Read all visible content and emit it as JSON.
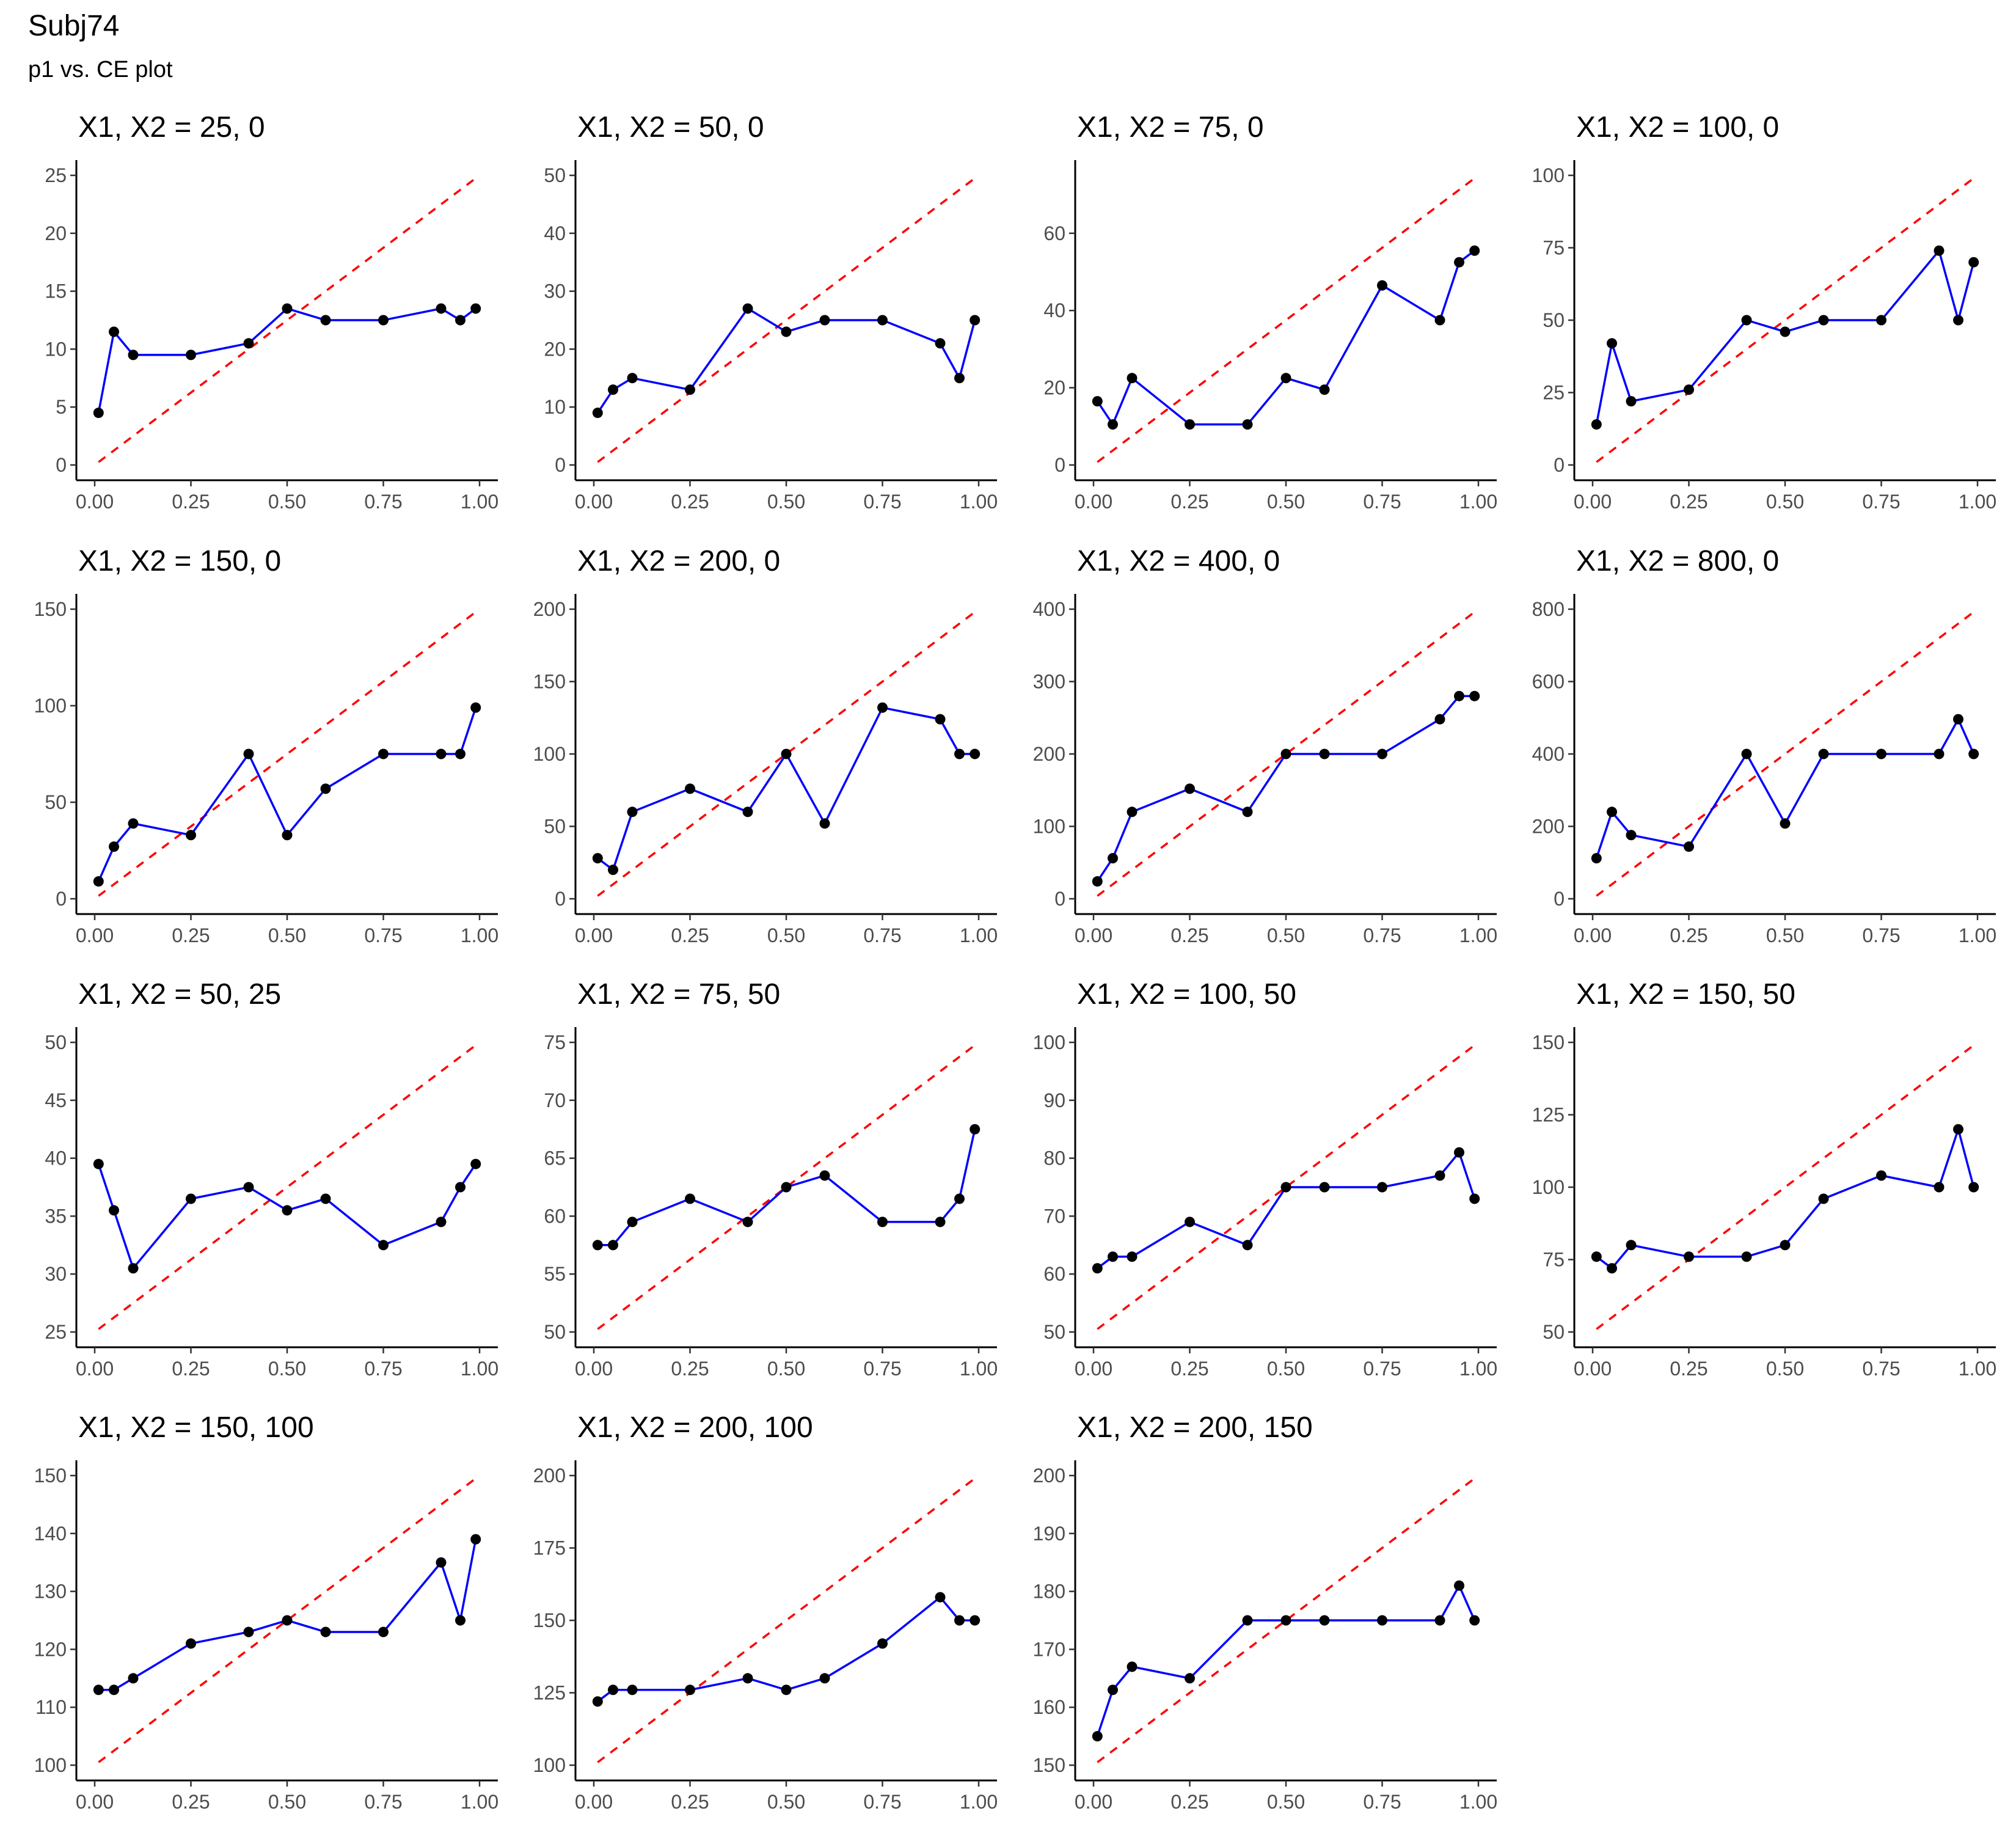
{
  "title": "Subj74",
  "subtitle": "p1 vs. CE plot",
  "colors": {
    "series_line": "#0000ff",
    "points": "#000000",
    "reference_line": "#ff0000"
  },
  "chart_data": [
    {
      "type": "line",
      "title": "X1, X2 = 25, 0",
      "ylim": [
        0,
        25
      ],
      "yticks": [
        0,
        5,
        10,
        15,
        20,
        25
      ],
      "xlim": [
        0,
        1
      ],
      "xticks": [
        "0.00",
        "0.25",
        "0.50",
        "0.75",
        "1.00"
      ],
      "reference_line": [
        [
          0.01,
          0.25
        ],
        [
          0.99,
          24.75
        ]
      ],
      "x": [
        0.01,
        0.05,
        0.1,
        0.25,
        0.4,
        0.5,
        0.6,
        0.75,
        0.9,
        0.95,
        0.99
      ],
      "y": [
        4.5,
        11.5,
        9.5,
        9.5,
        10.5,
        13.5,
        12.5,
        12.5,
        13.5,
        12.5,
        13.5
      ]
    },
    {
      "type": "line",
      "title": "X1, X2 = 50, 0",
      "ylim": [
        0,
        50
      ],
      "yticks": [
        0,
        10,
        20,
        30,
        40,
        50
      ],
      "xlim": [
        0,
        1
      ],
      "xticks": [
        "0.00",
        "0.25",
        "0.50",
        "0.75",
        "1.00"
      ],
      "reference_line": [
        [
          0.01,
          0.5
        ],
        [
          0.99,
          49.5
        ]
      ],
      "x": [
        0.01,
        0.05,
        0.1,
        0.25,
        0.4,
        0.5,
        0.6,
        0.75,
        0.9,
        0.95,
        0.99
      ],
      "y": [
        9,
        13,
        15,
        13,
        27,
        23,
        25,
        25,
        21,
        15,
        25
      ]
    },
    {
      "type": "line",
      "title": "X1, X2 = 75, 0",
      "ylim": [
        0,
        75
      ],
      "yticks": [
        0,
        20,
        40,
        60
      ],
      "xlim": [
        0,
        1
      ],
      "xticks": [
        "0.00",
        "0.25",
        "0.50",
        "0.75",
        "1.00"
      ],
      "reference_line": [
        [
          0.01,
          0.75
        ],
        [
          0.99,
          74.25
        ]
      ],
      "x": [
        0.01,
        0.05,
        0.1,
        0.25,
        0.4,
        0.5,
        0.6,
        0.75,
        0.9,
        0.95,
        0.99
      ],
      "y": [
        16.5,
        10.5,
        22.5,
        10.5,
        10.5,
        22.5,
        19.5,
        46.5,
        37.5,
        52.5,
        55.5
      ]
    },
    {
      "type": "line",
      "title": "X1, X2 = 100, 0",
      "ylim": [
        0,
        100
      ],
      "yticks": [
        0,
        25,
        50,
        75,
        100
      ],
      "xlim": [
        0,
        1
      ],
      "xticks": [
        "0.00",
        "0.25",
        "0.50",
        "0.75",
        "1.00"
      ],
      "reference_line": [
        [
          0.01,
          1
        ],
        [
          0.99,
          99
        ]
      ],
      "x": [
        0.01,
        0.05,
        0.1,
        0.25,
        0.4,
        0.5,
        0.6,
        0.75,
        0.9,
        0.95,
        0.99
      ],
      "y": [
        14,
        42,
        22,
        26,
        50,
        46,
        50,
        50,
        74,
        50,
        70
      ]
    },
    {
      "type": "line",
      "title": "X1, X2 = 150, 0",
      "ylim": [
        0,
        150
      ],
      "yticks": [
        0,
        50,
        100,
        150
      ],
      "xlim": [
        0,
        1
      ],
      "xticks": [
        "0.00",
        "0.25",
        "0.50",
        "0.75",
        "1.00"
      ],
      "reference_line": [
        [
          0.01,
          1.5
        ],
        [
          0.99,
          148.5
        ]
      ],
      "x": [
        0.01,
        0.05,
        0.1,
        0.25,
        0.4,
        0.5,
        0.6,
        0.75,
        0.9,
        0.95,
        0.99
      ],
      "y": [
        9,
        27,
        39,
        33,
        75,
        33,
        57,
        75,
        75,
        75,
        99
      ]
    },
    {
      "type": "line",
      "title": "X1, X2 = 200, 0",
      "ylim": [
        0,
        200
      ],
      "yticks": [
        0,
        50,
        100,
        150,
        200
      ],
      "xlim": [
        0,
        1
      ],
      "xticks": [
        "0.00",
        "0.25",
        "0.50",
        "0.75",
        "1.00"
      ],
      "reference_line": [
        [
          0.01,
          2
        ],
        [
          0.99,
          198
        ]
      ],
      "x": [
        0.01,
        0.05,
        0.1,
        0.25,
        0.4,
        0.5,
        0.6,
        0.75,
        0.9,
        0.95,
        0.99
      ],
      "y": [
        28,
        20,
        60,
        76,
        60,
        100,
        52,
        132,
        124,
        100,
        100
      ]
    },
    {
      "type": "line",
      "title": "X1, X2 = 400, 0",
      "ylim": [
        0,
        400
      ],
      "yticks": [
        0,
        100,
        200,
        300,
        400
      ],
      "xlim": [
        0,
        1
      ],
      "xticks": [
        "0.00",
        "0.25",
        "0.50",
        "0.75",
        "1.00"
      ],
      "reference_line": [
        [
          0.01,
          4
        ],
        [
          0.99,
          396
        ]
      ],
      "x": [
        0.01,
        0.05,
        0.1,
        0.25,
        0.4,
        0.5,
        0.6,
        0.75,
        0.9,
        0.95,
        0.99
      ],
      "y": [
        24,
        56,
        120,
        152,
        120,
        200,
        200,
        200,
        248,
        280,
        280
      ]
    },
    {
      "type": "line",
      "title": "X1, X2 = 800, 0",
      "ylim": [
        0,
        800
      ],
      "yticks": [
        0,
        200,
        400,
        600,
        800
      ],
      "xlim": [
        0,
        1
      ],
      "xticks": [
        "0.00",
        "0.25",
        "0.50",
        "0.75",
        "1.00"
      ],
      "reference_line": [
        [
          0.01,
          8
        ],
        [
          0.99,
          792
        ]
      ],
      "x": [
        0.01,
        0.05,
        0.1,
        0.25,
        0.4,
        0.5,
        0.6,
        0.75,
        0.9,
        0.95,
        0.99
      ],
      "y": [
        112,
        240,
        176,
        144,
        400,
        208,
        400,
        400,
        400,
        496,
        400
      ]
    },
    {
      "type": "line",
      "title": "X1, X2 = 50, 25",
      "ylim": [
        25,
        50
      ],
      "yticks": [
        25,
        30,
        35,
        40,
        45,
        50
      ],
      "xlim": [
        0,
        1
      ],
      "xticks": [
        "0.00",
        "0.25",
        "0.50",
        "0.75",
        "1.00"
      ],
      "reference_line": [
        [
          0.01,
          25.25
        ],
        [
          0.99,
          49.75
        ]
      ],
      "x": [
        0.01,
        0.05,
        0.1,
        0.25,
        0.4,
        0.5,
        0.6,
        0.75,
        0.9,
        0.95,
        0.99
      ],
      "y": [
        39.5,
        35.5,
        30.5,
        36.5,
        37.5,
        35.5,
        36.5,
        32.5,
        34.5,
        37.5,
        39.5
      ]
    },
    {
      "type": "line",
      "title": "X1, X2 = 75, 50",
      "ylim": [
        50,
        75
      ],
      "yticks": [
        50,
        55,
        60,
        65,
        70,
        75
      ],
      "xlim": [
        0,
        1
      ],
      "xticks": [
        "0.00",
        "0.25",
        "0.50",
        "0.75",
        "1.00"
      ],
      "reference_line": [
        [
          0.01,
          50.25
        ],
        [
          0.99,
          74.75
        ]
      ],
      "x": [
        0.01,
        0.05,
        0.1,
        0.25,
        0.4,
        0.5,
        0.6,
        0.75,
        0.9,
        0.95,
        0.99
      ],
      "y": [
        57.5,
        57.5,
        59.5,
        61.5,
        59.5,
        62.5,
        63.5,
        59.5,
        59.5,
        61.5,
        67.5
      ]
    },
    {
      "type": "line",
      "title": "X1, X2 = 100, 50",
      "ylim": [
        50,
        100
      ],
      "yticks": [
        50,
        60,
        70,
        80,
        90,
        100
      ],
      "xlim": [
        0,
        1
      ],
      "xticks": [
        "0.00",
        "0.25",
        "0.50",
        "0.75",
        "1.00"
      ],
      "reference_line": [
        [
          0.01,
          50.5
        ],
        [
          0.99,
          99.5
        ]
      ],
      "x": [
        0.01,
        0.05,
        0.1,
        0.25,
        0.4,
        0.5,
        0.6,
        0.75,
        0.9,
        0.95,
        0.99
      ],
      "y": [
        61,
        63,
        63,
        69,
        65,
        75,
        75,
        75,
        77,
        81,
        73
      ]
    },
    {
      "type": "line",
      "title": "X1, X2 = 150, 50",
      "ylim": [
        50,
        150
      ],
      "yticks": [
        50,
        75,
        100,
        125,
        150
      ],
      "xlim": [
        0,
        1
      ],
      "xticks": [
        "0.00",
        "0.25",
        "0.50",
        "0.75",
        "1.00"
      ],
      "reference_line": [
        [
          0.01,
          51
        ],
        [
          0.99,
          149
        ]
      ],
      "x": [
        0.01,
        0.05,
        0.1,
        0.25,
        0.4,
        0.5,
        0.6,
        0.75,
        0.9,
        0.95,
        0.99
      ],
      "y": [
        76,
        72,
        80,
        76,
        76,
        80,
        96,
        104,
        100,
        120,
        100
      ]
    },
    {
      "type": "line",
      "title": "X1, X2 = 150, 100",
      "ylim": [
        100,
        150
      ],
      "yticks": [
        100,
        110,
        120,
        130,
        140,
        150
      ],
      "xlim": [
        0,
        1
      ],
      "xticks": [
        "0.00",
        "0.25",
        "0.50",
        "0.75",
        "1.00"
      ],
      "reference_line": [
        [
          0.01,
          100.5
        ],
        [
          0.99,
          149.5
        ]
      ],
      "x": [
        0.01,
        0.05,
        0.1,
        0.25,
        0.4,
        0.5,
        0.6,
        0.75,
        0.9,
        0.95,
        0.99
      ],
      "y": [
        113,
        113,
        115,
        121,
        123,
        125,
        123,
        123,
        135,
        125,
        139
      ]
    },
    {
      "type": "line",
      "title": "X1, X2 = 200, 100",
      "ylim": [
        100,
        200
      ],
      "yticks": [
        100,
        125,
        150,
        175,
        200
      ],
      "xlim": [
        0,
        1
      ],
      "xticks": [
        "0.00",
        "0.25",
        "0.50",
        "0.75",
        "1.00"
      ],
      "reference_line": [
        [
          0.01,
          101
        ],
        [
          0.99,
          199
        ]
      ],
      "x": [
        0.01,
        0.05,
        0.1,
        0.25,
        0.4,
        0.5,
        0.6,
        0.75,
        0.9,
        0.95,
        0.99
      ],
      "y": [
        122,
        126,
        126,
        126,
        130,
        126,
        130,
        142,
        158,
        150,
        150
      ]
    },
    {
      "type": "line",
      "title": "X1, X2 = 200, 150",
      "ylim": [
        150,
        200
      ],
      "yticks": [
        150,
        160,
        170,
        180,
        190,
        200
      ],
      "xlim": [
        0,
        1
      ],
      "xticks": [
        "0.00",
        "0.25",
        "0.50",
        "0.75",
        "1.00"
      ],
      "reference_line": [
        [
          0.01,
          150.5
        ],
        [
          0.99,
          199.5
        ]
      ],
      "x": [
        0.01,
        0.05,
        0.1,
        0.25,
        0.4,
        0.5,
        0.6,
        0.75,
        0.9,
        0.95,
        0.99
      ],
      "y": [
        155,
        163,
        167,
        165,
        175,
        175,
        175,
        175,
        175,
        181,
        175
      ]
    }
  ]
}
